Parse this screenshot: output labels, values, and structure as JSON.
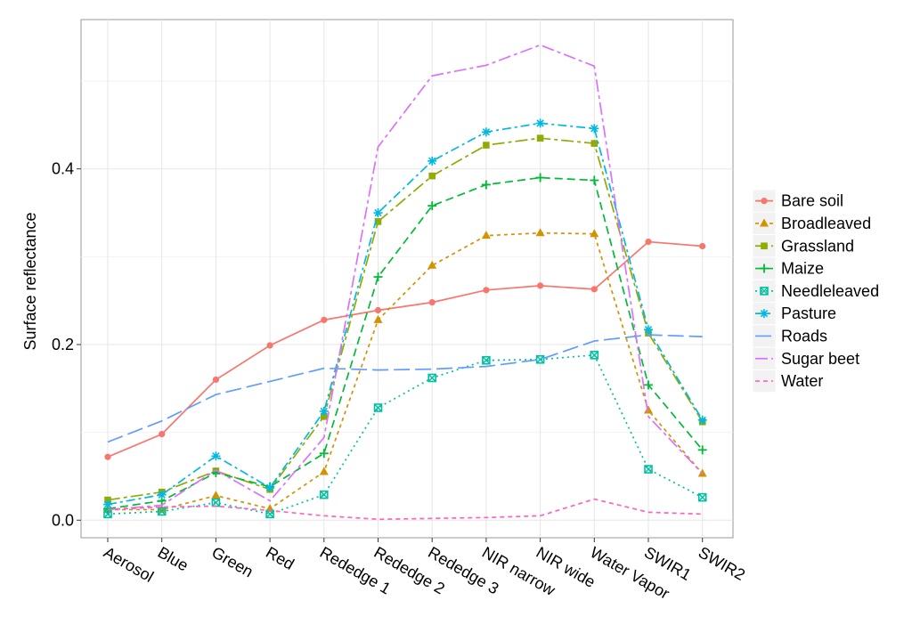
{
  "chart_data": {
    "type": "line",
    "title": "",
    "xlabel": "",
    "ylabel": "Surface reflectance",
    "categories": [
      "Aerosol",
      "Blue",
      "Green",
      "Red",
      "Rededge 1",
      "Rededge 2",
      "Rededge 3",
      "NIR narrow",
      "NIR wide",
      "Water Vapor",
      "SWIR1",
      "SWIR2"
    ],
    "ylim": [
      -0.02,
      0.57
    ],
    "yticks": [
      0.0,
      0.2,
      0.4
    ],
    "ytick_labels": [
      "0.0",
      "0.2",
      "0.4"
    ],
    "grid": true,
    "legend_position": "right",
    "series": [
      {
        "name": "Bare soil",
        "color": "#F8766D",
        "dash": "",
        "marker": "circle",
        "values": [
          0.072,
          0.098,
          0.16,
          0.199,
          0.228,
          0.239,
          0.248,
          0.262,
          0.267,
          0.263,
          0.317,
          0.312
        ]
      },
      {
        "name": "Broadleaved",
        "color": "#D39200",
        "dash": "4,4",
        "marker": "triangle",
        "values": [
          0.012,
          0.012,
          0.028,
          0.013,
          0.055,
          0.228,
          0.29,
          0.324,
          0.327,
          0.326,
          0.125,
          0.053
        ]
      },
      {
        "name": "Grassland",
        "color": "#93AA00",
        "dash": "14,4,4,4",
        "marker": "square",
        "values": [
          0.023,
          0.032,
          0.056,
          0.035,
          0.118,
          0.34,
          0.392,
          0.427,
          0.435,
          0.429,
          0.213,
          0.112
        ]
      },
      {
        "name": "Maize",
        "color": "#00BA38",
        "dash": "9,5",
        "marker": "plus",
        "values": [
          0.013,
          0.022,
          0.054,
          0.038,
          0.076,
          0.277,
          0.358,
          0.382,
          0.39,
          0.387,
          0.154,
          0.08
        ]
      },
      {
        "name": "Needleleaved",
        "color": "#00C19F",
        "dash": "2,4",
        "marker": "boxsquare",
        "values": [
          0.007,
          0.01,
          0.02,
          0.007,
          0.029,
          0.128,
          0.162,
          0.182,
          0.183,
          0.188,
          0.058,
          0.026
        ]
      },
      {
        "name": "Pasture",
        "color": "#00B9E3",
        "dash": "10,4,3,4",
        "marker": "asterisk",
        "values": [
          0.018,
          0.029,
          0.073,
          0.037,
          0.124,
          0.35,
          0.409,
          0.442,
          0.452,
          0.446,
          0.217,
          0.114
        ]
      },
      {
        "name": "Roads",
        "color": "#619CFF",
        "dash": "18,6",
        "marker": "none",
        "values": [
          0.089,
          0.113,
          0.143,
          0.158,
          0.173,
          0.171,
          0.172,
          0.175,
          0.183,
          0.204,
          0.211,
          0.209
        ]
      },
      {
        "name": "Sugar beet",
        "color": "#DB72FB",
        "dash": "14,4,4,4",
        "marker": "none",
        "values": [
          0.012,
          0.017,
          0.057,
          0.022,
          0.094,
          0.425,
          0.506,
          0.518,
          0.541,
          0.517,
          0.118,
          0.053
        ]
      },
      {
        "name": "Water",
        "color": "#FF61C3",
        "dash": "5,4",
        "marker": "none",
        "values": [
          0.012,
          0.015,
          0.016,
          0.011,
          0.005,
          0.001,
          0.002,
          0.003,
          0.005,
          0.024,
          0.009,
          0.007
        ]
      }
    ]
  }
}
